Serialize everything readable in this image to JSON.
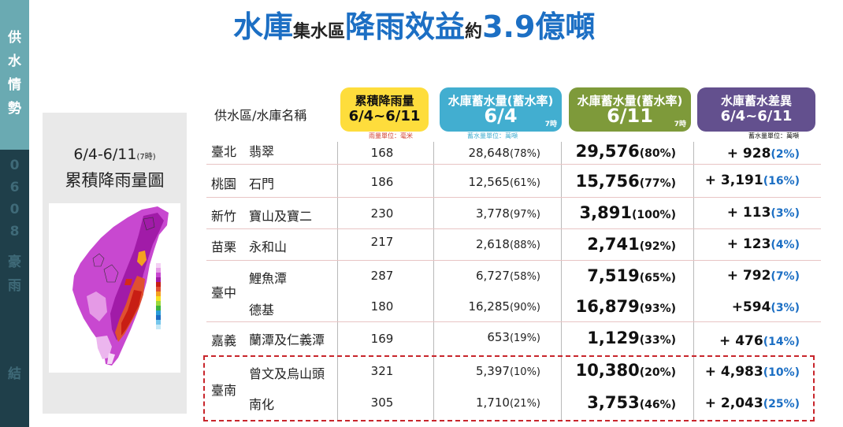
{
  "sidebar": {
    "top_chars": [
      "供",
      "水",
      "情",
      "勢"
    ],
    "bottom_chars": [
      "0",
      "6",
      "0",
      "8",
      "豪",
      "雨",
      "結"
    ]
  },
  "title": {
    "part1": "水庫",
    "part2": "集水區",
    "part3": "降雨效益",
    "part4": "約",
    "part5": "3.9億噸"
  },
  "left_panel": {
    "title_main": "6/4-6/11",
    "title_sub": "(7時)",
    "subtitle": "累積降雨量圖"
  },
  "table": {
    "name_header": "供水區/水庫名稱",
    "headers": {
      "rain_l1": "累積降雨量",
      "rain_l2": "6/4~6/11",
      "s64_l1": "水庫蓄水量(蓄水率)",
      "s64_l2": "6/4",
      "s64_tag": "7時",
      "s611_l1": "水庫蓄水量(蓄水率)",
      "s611_l2": "6/11",
      "s611_tag": "7時",
      "diff_l1": "水庫蓄水差異",
      "diff_l2": "6/4~6/11"
    },
    "units": {
      "rain": "雨量單位：毫米",
      "s64": "蓄水量單位：萬噸",
      "diff": "蓄水量單位：萬噸"
    },
    "regions": [
      "臺北",
      "桃園",
      "新竹",
      "苗栗",
      "臺中",
      "嘉義",
      "臺南"
    ],
    "rows": [
      {
        "reservoir": "翡翠",
        "rain": "168",
        "s64_value": "28,648",
        "s64_pct": "(78%)",
        "s611_value": "29,576",
        "s611_pct": "(80%)",
        "diff_value": "+ 928",
        "diff_pct": "(2%)"
      },
      {
        "reservoir": "石門",
        "rain": "186",
        "s64_value": "12,565",
        "s64_pct": "(61%)",
        "s611_value": "15,756",
        "s611_pct": "(77%)",
        "diff_value": "+ 3,191",
        "diff_pct": "(16%)"
      },
      {
        "reservoir": "寶山及寶二",
        "rain": "230",
        "s64_value": "3,778",
        "s64_pct": "(97%)",
        "s611_value": "3,891",
        "s611_pct": "(100%)",
        "diff_value": "+ 113",
        "diff_pct": "(3%)"
      },
      {
        "reservoir": "永和山",
        "rain": "217",
        "s64_value": "2,618",
        "s64_pct": "(88%)",
        "s611_value": "2,741",
        "s611_pct": "(92%)",
        "diff_value": "+ 123",
        "diff_pct": "(4%)"
      },
      {
        "reservoir": "鯉魚潭",
        "rain": "287",
        "s64_value": "6,727",
        "s64_pct": "(58%)",
        "s611_value": "7,519",
        "s611_pct": "(65%)",
        "diff_value": "+ 792",
        "diff_pct": "(7%)"
      },
      {
        "reservoir": "德基",
        "rain": "180",
        "s64_value": "16,285",
        "s64_pct": "(90%)",
        "s611_value": "16,879",
        "s611_pct": "(93%)",
        "diff_value": "+594",
        "diff_pct": "(3%)"
      },
      {
        "reservoir": "蘭潭及仁義潭",
        "rain": "169",
        "s64_value": "653",
        "s64_pct": "(19%)",
        "s611_value": "1,129",
        "s611_pct": "(33%)",
        "diff_value": "+ 476",
        "diff_pct": "(14%)"
      },
      {
        "reservoir": "曾文及烏山頭",
        "rain": "321",
        "s64_value": "5,397",
        "s64_pct": "(10%)",
        "s611_value": "10,380",
        "s611_pct": "(20%)",
        "diff_value": "+ 4,983",
        "diff_pct": "(10%)"
      },
      {
        "reservoir": "南化",
        "rain": "305",
        "s64_value": "1,710",
        "s64_pct": "(21%)",
        "s611_value": "3,753",
        "s611_pct": "(46%)",
        "diff_value": "+ 2,043",
        "diff_pct": "(25%)"
      }
    ]
  },
  "colors": {
    "title_blue": "#1c6fc4",
    "rain_header": "#fedd3c",
    "storage_64_header": "#42aed0",
    "storage_611_header": "#7e9a3a",
    "diff_header": "#63508e",
    "highlight_border": "#c8252b"
  }
}
